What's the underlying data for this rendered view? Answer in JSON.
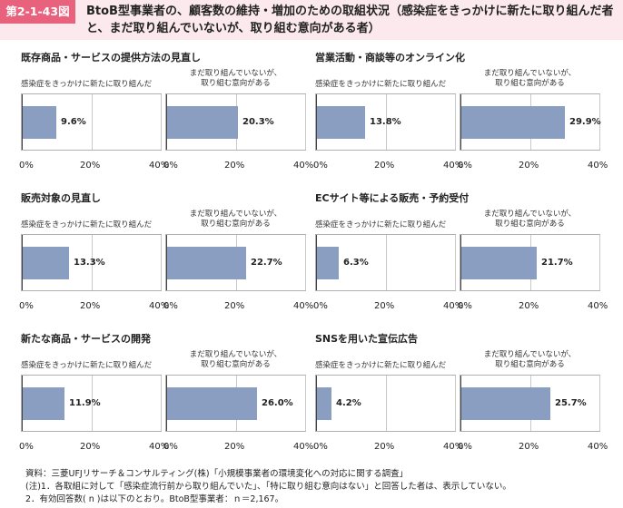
{
  "header": {
    "figure_label": "第2-1-43図",
    "title": "BtoB型事業者の、顧客数の維持・増加のための取組状況（感染症をきっかけに新たに取り組んだ者と、まだ取り組んでいないが、取り組む意向がある者）"
  },
  "colors": {
    "bar": "#8a9ec1",
    "header_bg": "#fce9ee",
    "label_bg": "#e8627e"
  },
  "chart_data": [
    {
      "type": "bar",
      "title": "既存商品・サービスの提供方法の見直し",
      "series": [
        {
          "name": "感染症をきっかけに新たに取り組んだ",
          "value": 9.6,
          "label": "9.6%"
        },
        {
          "name": "まだ取り組んでいないが、\n取り組む意向がある",
          "value": 20.3,
          "label": "20.3%"
        }
      ],
      "xlim": [
        0,
        40
      ],
      "ticks": [
        "0%",
        "20%",
        "40%"
      ]
    },
    {
      "type": "bar",
      "title": "営業活動・商談等のオンライン化",
      "series": [
        {
          "name": "感染症をきっかけに新たに取り組んだ",
          "value": 13.8,
          "label": "13.8%"
        },
        {
          "name": "まだ取り組んでいないが、\n取り組む意向がある",
          "value": 29.9,
          "label": "29.9%"
        }
      ],
      "xlim": [
        0,
        40
      ],
      "ticks": [
        "0%",
        "20%",
        "40%"
      ]
    },
    {
      "type": "bar",
      "title": "販売対象の見直し",
      "series": [
        {
          "name": "感染症をきっかけに新たに取り組んだ",
          "value": 13.3,
          "label": "13.3%"
        },
        {
          "name": "まだ取り組んでいないが、\n取り組む意向がある",
          "value": 22.7,
          "label": "22.7%"
        }
      ],
      "xlim": [
        0,
        40
      ],
      "ticks": [
        "0%",
        "20%",
        "40%"
      ]
    },
    {
      "type": "bar",
      "title": "ECサイト等による販売・予約受付",
      "series": [
        {
          "name": "感染症をきっかけに新たに取り組んだ",
          "value": 6.3,
          "label": "6.3%"
        },
        {
          "name": "まだ取り組んでいないが、\n取り組む意向がある",
          "value": 21.7,
          "label": "21.7%"
        }
      ],
      "xlim": [
        0,
        40
      ],
      "ticks": [
        "0%",
        "20%",
        "40%"
      ]
    },
    {
      "type": "bar",
      "title": "新たな商品・サービスの開発",
      "series": [
        {
          "name": "感染症をきっかけに新たに取り組んだ",
          "value": 11.9,
          "label": "11.9%"
        },
        {
          "name": "まだ取り組んでいないが、\n取り組む意向がある",
          "value": 26.0,
          "label": "26.0%"
        }
      ],
      "xlim": [
        0,
        40
      ],
      "ticks": [
        "0%",
        "20%",
        "40%"
      ]
    },
    {
      "type": "bar",
      "title": "SNSを用いた宣伝広告",
      "series": [
        {
          "name": "感染症をきっかけに新たに取り組んだ",
          "value": 4.2,
          "label": "4.2%"
        },
        {
          "name": "まだ取り組んでいないが、\n取り組む意向がある",
          "value": 25.7,
          "label": "25.7%"
        }
      ],
      "xlim": [
        0,
        40
      ],
      "ticks": [
        "0%",
        "20%",
        "40%"
      ]
    }
  ],
  "footer": {
    "source": "資料：三菱UFJリサーチ＆コンサルティング(株)「小規模事業者の環境変化への対応に関する調査」",
    "note1": "(注)1．各取組に対して「感染症流行前から取り組んでいた」、「特に取り組む意向はない」と回答した者は、表示していない。",
    "note2": "2．有効回答数( n )は以下のとおり。BtoB型事業者：ｎ＝2,167。"
  }
}
